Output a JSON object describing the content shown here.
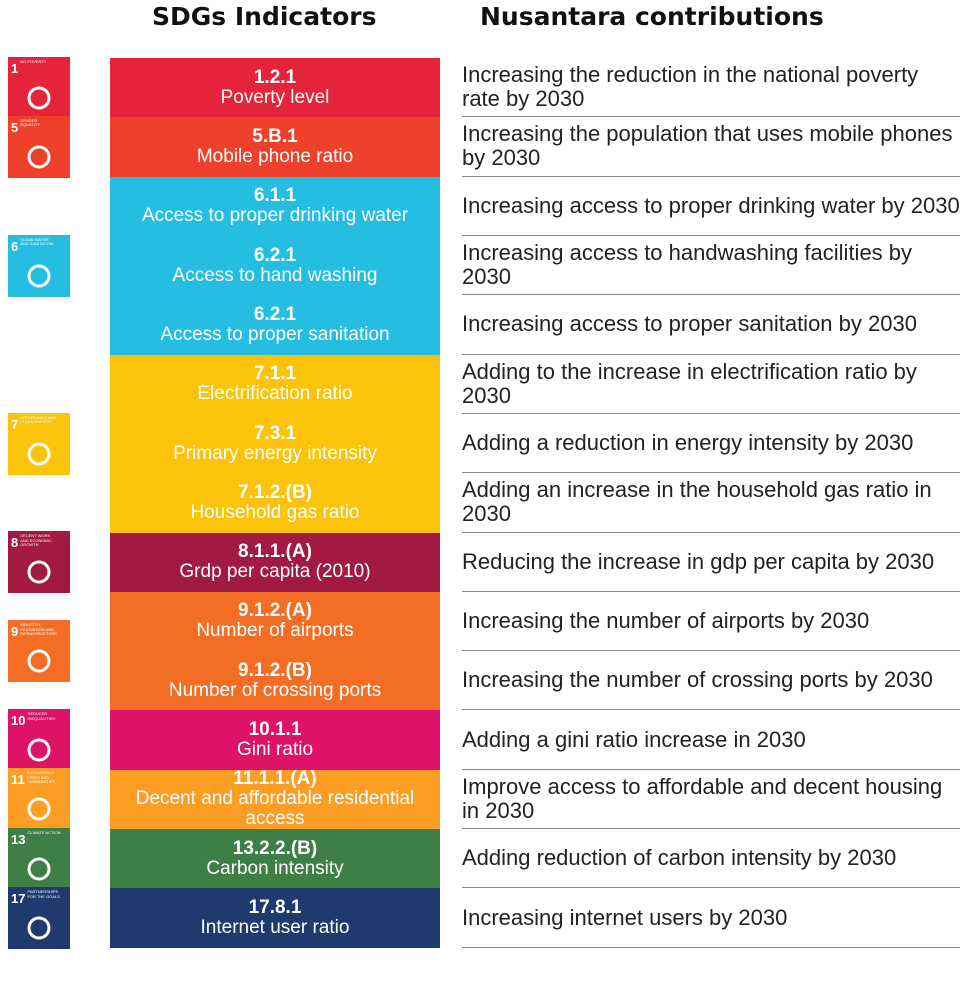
{
  "header": {
    "indicators": "SDGs Indicators",
    "contributions": "Nusantara contributions"
  },
  "groups": [
    {
      "icon": {
        "number": "1",
        "label": "NO POVERTY"
      },
      "color": "#e5243b",
      "rows": [
        {
          "code": "1.2.1",
          "name": "Poverty level",
          "contribution": "Increasing the reduction in the national poverty rate by 2030"
        }
      ]
    },
    {
      "icon": {
        "number": "5",
        "label": "GENDER EQUALITY"
      },
      "color": "#ef402b",
      "rows": [
        {
          "code": "5.B.1",
          "name": "Mobile phone ratio",
          "contribution": "Increasing the population that uses mobile phones by 2030"
        }
      ]
    },
    {
      "icon": {
        "number": "6",
        "label": "CLEAN WATER AND SANITATION"
      },
      "color": "#26bde2",
      "rows": [
        {
          "code": "6.1.1",
          "name": "Access to proper drinking water",
          "contribution": "Increasing access to proper drinking water by 2030"
        },
        {
          "code": "6.2.1",
          "name": "Access to hand washing",
          "contribution": "Increasing access to handwashing facilities by 2030"
        },
        {
          "code": "6.2.1",
          "name": "Access to proper sanitation",
          "contribution": "Increasing access to proper sanitation by 2030"
        }
      ]
    },
    {
      "icon": {
        "number": "7",
        "label": "AFFORDABLE AND CLEAN ENERGY"
      },
      "color": "#fcc30b",
      "rows": [
        {
          "code": "7.1.1",
          "name": "Electrification ratio",
          "contribution": "Adding to the increase in electrification ratio by 2030"
        },
        {
          "code": "7.3.1",
          "name": "Primary energy intensity",
          "contribution": "Adding a reduction in energy intensity by 2030"
        },
        {
          "code": "7.1.2.(B)",
          "name": "Household gas ratio",
          "contribution": "Adding an increase in the household gas ratio in 2030"
        }
      ]
    },
    {
      "icon": {
        "number": "8",
        "label": "DECENT WORK AND ECONOMIC GROWTH"
      },
      "color": "#a21942",
      "rows": [
        {
          "code": "8.1.1.(A)",
          "name": "Grdp per capita (2010)",
          "contribution": "Reducing the increase in gdp per capita by 2030"
        }
      ]
    },
    {
      "icon": {
        "number": "9",
        "label": "INDUSTRY, INNOVATION AND INFRASTRUCTURE"
      },
      "color": "#f36d25",
      "rows": [
        {
          "code": "9.1.2.(A)",
          "name": "Number of airports",
          "contribution": "Increasing the number of airports by 2030"
        },
        {
          "code": "9.1.2.(B)",
          "name": "Number of crossing ports",
          "contribution": "Increasing the number of crossing ports by 2030"
        }
      ]
    },
    {
      "icon": {
        "number": "10",
        "label": "REDUCED INEQUALITIES"
      },
      "color": "#dd1367",
      "rows": [
        {
          "code": "10.1.1",
          "name": "Gini ratio",
          "contribution": "Adding a gini ratio increase in 2030"
        }
      ]
    },
    {
      "icon": {
        "number": "11",
        "label": "SUSTAINABLE CITIES AND COMMUNITIES"
      },
      "color": "#fd9d24",
      "rows": [
        {
          "code": "11.1.1.(A)",
          "name": "Decent and affordable residential access",
          "contribution": "Improve access to affordable and decent housing in 2030"
        }
      ]
    },
    {
      "icon": {
        "number": "13",
        "label": "CLIMATE ACTION"
      },
      "color": "#3f7e44",
      "rows": [
        {
          "code": "13.2.2.(B)",
          "name": "Carbon intensity",
          "contribution": "Adding reduction of carbon intensity by 2030"
        }
      ]
    },
    {
      "icon": {
        "number": "17",
        "label": "PARTNERSHIPS FOR THE GOALS"
      },
      "color": "#1e3a6e",
      "rows": [
        {
          "code": "17.8.1",
          "name": "Internet user ratio",
          "contribution": "Increasing internet users by 2030"
        }
      ]
    }
  ]
}
